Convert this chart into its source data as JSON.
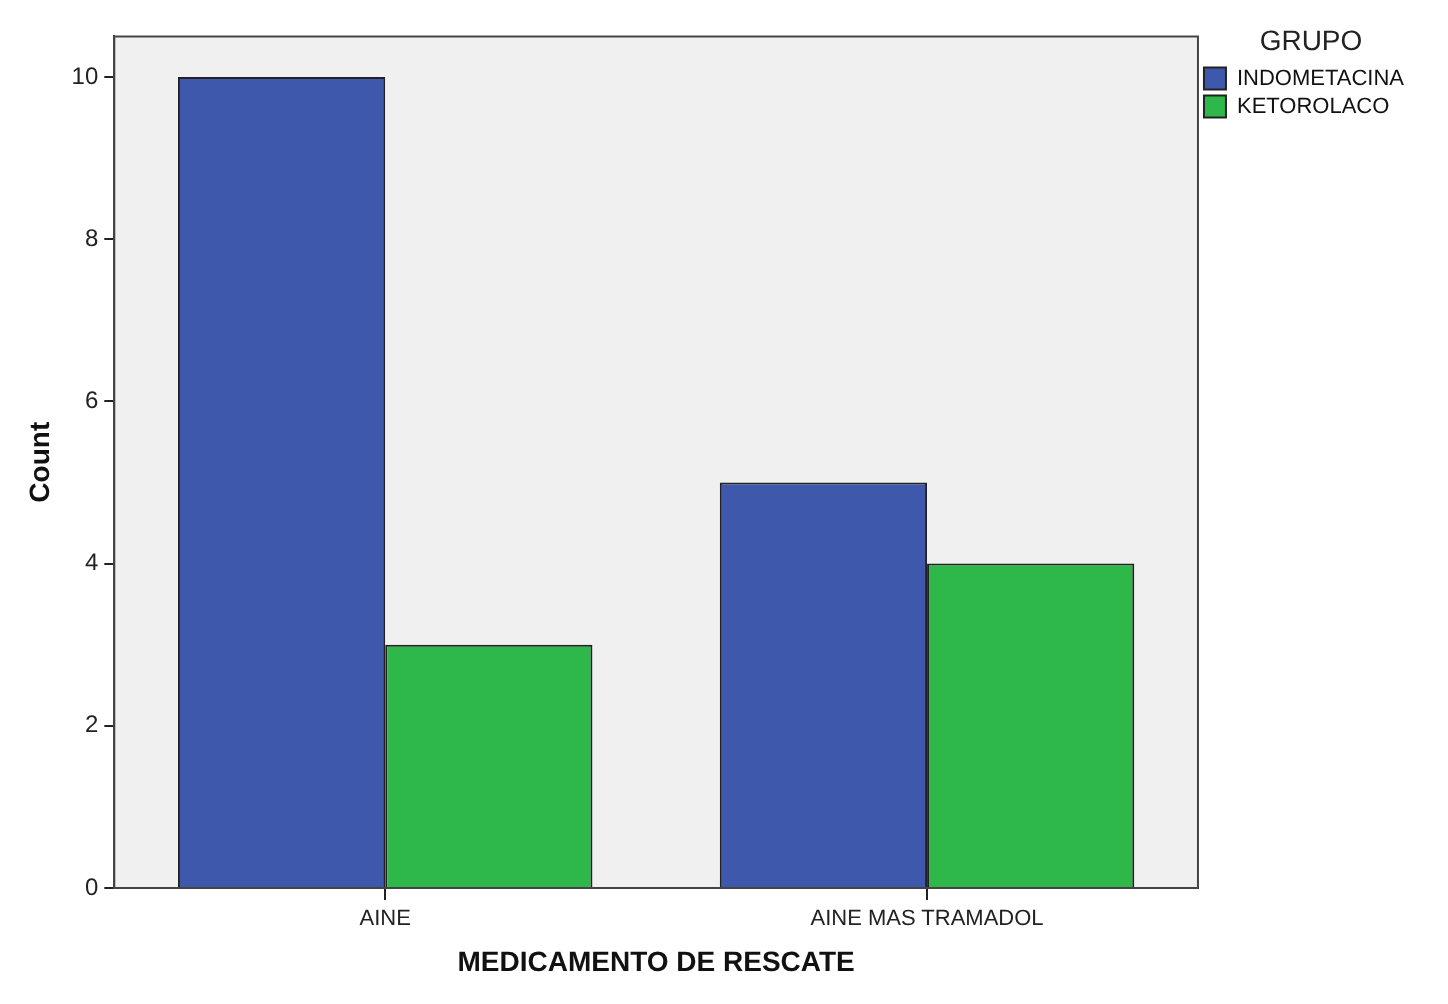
{
  "chart_data": {
    "type": "bar",
    "xlabel": "MEDICAMENTO DE RESCATE",
    "ylabel": "Count",
    "legend_title": "GRUPO",
    "categories": [
      "AINE",
      "AINE MAS TRAMADOL"
    ],
    "series": [
      {
        "name": "INDOMETACINA",
        "color": "#3e58ac",
        "values": [
          10,
          5
        ]
      },
      {
        "name": "KETOROLACO",
        "color": "#2fb84a",
        "values": [
          3,
          4
        ]
      }
    ],
    "ylim": [
      0,
      10.5
    ],
    "yticks": [
      0,
      2,
      4,
      6,
      8,
      10
    ],
    "grid": false,
    "legend": "top right"
  }
}
